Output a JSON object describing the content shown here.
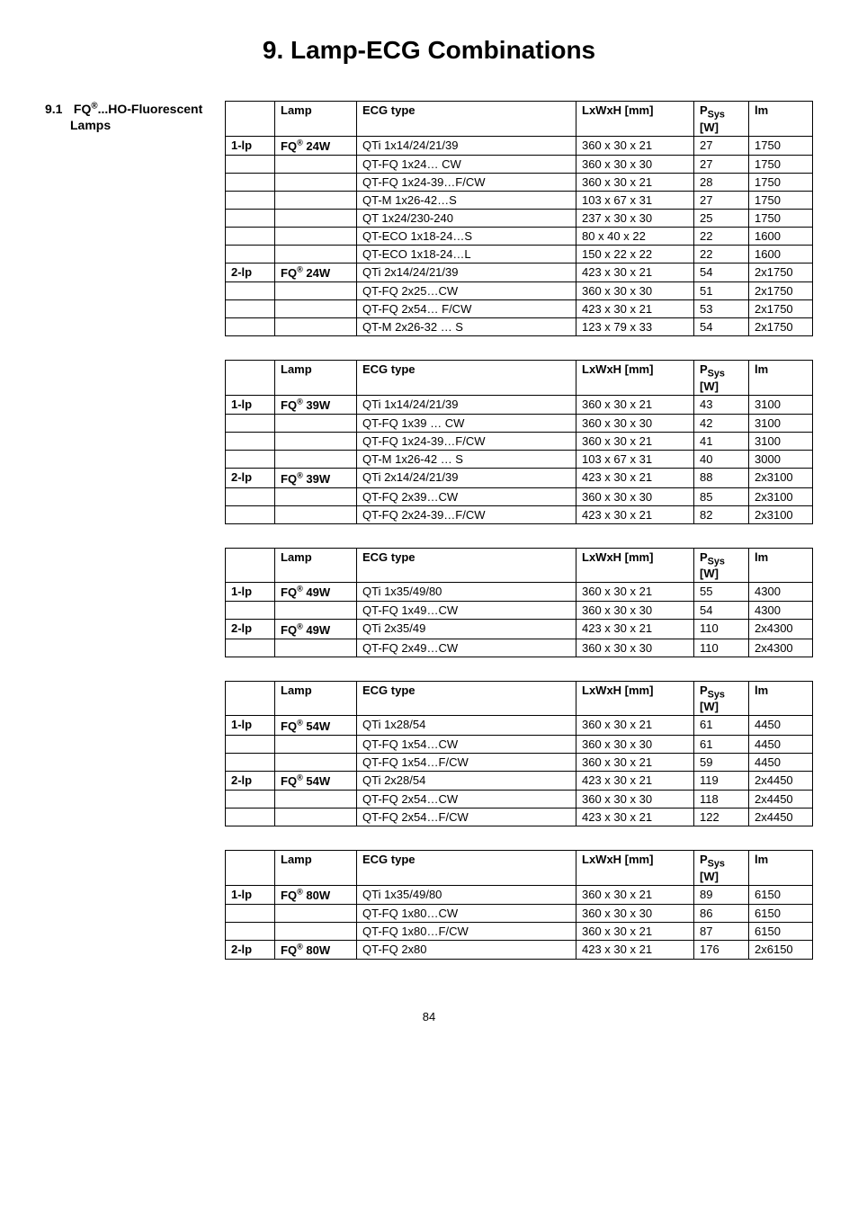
{
  "page_title": "9. Lamp-ECG Combinations",
  "section_number": "9.1",
  "section_title_line1": "FQ®...HO-Fluorescent",
  "section_title_line2": "Lamps",
  "page_number": "84",
  "headers": {
    "n": "",
    "lamp": "Lamp",
    "ecg": "ECG type",
    "dim": "LxWxH [mm]",
    "psys_top": "P",
    "psys_sub": "Sys",
    "psys_unit": "[W]",
    "lm": "lm"
  },
  "tables": [
    {
      "rows": [
        {
          "n": "1-lp",
          "lamp": "FQ® 24W",
          "ecg": "QTi 1x14/24/21/39",
          "dim": "360 x 30 x 21",
          "psys": "27",
          "lm": "1750"
        },
        {
          "n": "",
          "lamp": "",
          "ecg": "QT-FQ 1x24… CW",
          "dim": "360 x 30 x 30",
          "psys": "27",
          "lm": "1750"
        },
        {
          "n": "",
          "lamp": "",
          "ecg": "QT-FQ 1x24-39…F/CW",
          "dim": "360 x 30 x 21",
          "psys": "28",
          "lm": "1750"
        },
        {
          "n": "",
          "lamp": "",
          "ecg": "QT-M 1x26-42…S",
          "dim": "103 x 67 x 31",
          "psys": "27",
          "lm": "1750"
        },
        {
          "n": "",
          "lamp": "",
          "ecg": "QT 1x24/230-240",
          "dim": "237 x 30 x 30",
          "psys": "25",
          "lm": "1750"
        },
        {
          "n": "",
          "lamp": "",
          "ecg": "QT-ECO 1x18-24…S",
          "dim": "80 x 40 x 22",
          "psys": "22",
          "lm": "1600"
        },
        {
          "n": "",
          "lamp": "",
          "ecg": "QT-ECO 1x18-24…L",
          "dim": "150 x 22 x 22",
          "psys": "22",
          "lm": "1600"
        },
        {
          "n": "2-lp",
          "lamp": "FQ® 24W",
          "ecg": "QTi 2x14/24/21/39",
          "dim": "423 x 30 x 21",
          "psys": "54",
          "lm": "2x1750"
        },
        {
          "n": "",
          "lamp": "",
          "ecg": "QT-FQ 2x25…CW",
          "dim": "360 x 30 x 30",
          "psys": "51",
          "lm": "2x1750"
        },
        {
          "n": "",
          "lamp": "",
          "ecg": "QT-FQ 2x54… F/CW",
          "dim": "423 x 30 x 21",
          "psys": "53",
          "lm": "2x1750"
        },
        {
          "n": "",
          "lamp": "",
          "ecg": "QT-M 2x26-32 … S",
          "dim": "123 x 79 x 33",
          "psys": "54",
          "lm": "2x1750"
        }
      ]
    },
    {
      "rows": [
        {
          "n": "1-lp",
          "lamp": "FQ® 39W",
          "ecg": "QTi 1x14/24/21/39",
          "dim": "360 x 30 x 21",
          "psys": "43",
          "lm": "3100"
        },
        {
          "n": "",
          "lamp": "",
          "ecg": "QT-FQ 1x39 … CW",
          "dim": "360 x 30 x 30",
          "psys": "42",
          "lm": "3100"
        },
        {
          "n": "",
          "lamp": "",
          "ecg": "QT-FQ 1x24-39…F/CW",
          "dim": "360 x 30 x 21",
          "psys": "41",
          "lm": "3100"
        },
        {
          "n": "",
          "lamp": "",
          "ecg": "QT-M 1x26-42 … S",
          "dim": "103 x 67 x 31",
          "psys": "40",
          "lm": "3000"
        },
        {
          "n": "2-lp",
          "lamp": "FQ® 39W",
          "ecg": "QTi 2x14/24/21/39",
          "dim": "423 x 30 x 21",
          "psys": "88",
          "lm": "2x3100"
        },
        {
          "n": "",
          "lamp": "",
          "ecg": "QT-FQ 2x39…CW",
          "dim": "360 x 30 x 30",
          "psys": "85",
          "lm": "2x3100"
        },
        {
          "n": "",
          "lamp": "",
          "ecg": "QT-FQ 2x24-39…F/CW",
          "dim": "423 x 30 x 21",
          "psys": "82",
          "lm": "2x3100"
        }
      ]
    },
    {
      "rows": [
        {
          "n": "1-lp",
          "lamp": "FQ® 49W",
          "ecg": "QTi 1x35/49/80",
          "dim": "360 x 30 x 21",
          "psys": "55",
          "lm": "4300"
        },
        {
          "n": "",
          "lamp": "",
          "ecg": "QT-FQ 1x49…CW",
          "dim": "360 x 30 x 30",
          "psys": "54",
          "lm": "4300"
        },
        {
          "n": "2-lp",
          "lamp": "FQ® 49W",
          "ecg": "QTi 2x35/49",
          "dim": "423 x 30 x 21",
          "psys": "110",
          "lm": "2x4300"
        },
        {
          "n": "",
          "lamp": "",
          "ecg": "QT-FQ 2x49…CW",
          "dim": "360 x 30 x 30",
          "psys": "110",
          "lm": "2x4300"
        }
      ]
    },
    {
      "rows": [
        {
          "n": "1-lp",
          "lamp": "FQ® 54W",
          "ecg": "QTi 1x28/54",
          "dim": "360 x 30 x 21",
          "psys": "61",
          "lm": "4450"
        },
        {
          "n": "",
          "lamp": "",
          "ecg": "QT-FQ 1x54…CW",
          "dim": "360 x 30 x 30",
          "psys": "61",
          "lm": "4450"
        },
        {
          "n": "",
          "lamp": "",
          "ecg": "QT-FQ 1x54…F/CW",
          "dim": "360 x 30 x 21",
          "psys": "59",
          "lm": "4450"
        },
        {
          "n": "2-lp",
          "lamp": "FQ® 54W",
          "ecg": "QTi 2x28/54",
          "dim": "423 x 30 x 21",
          "psys": "119",
          "lm": "2x4450"
        },
        {
          "n": "",
          "lamp": "",
          "ecg": "QT-FQ 2x54…CW",
          "dim": "360 x 30 x 30",
          "psys": "118",
          "lm": "2x4450"
        },
        {
          "n": "",
          "lamp": "",
          "ecg": "QT-FQ 2x54…F/CW",
          "dim": "423 x 30 x 21",
          "psys": "122",
          "lm": "2x4450"
        }
      ]
    },
    {
      "rows": [
        {
          "n": "1-lp",
          "lamp": "FQ® 80W",
          "ecg": "QTi 1x35/49/80",
          "dim": "360 x 30 x 21",
          "psys": "89",
          "lm": "6150"
        },
        {
          "n": "",
          "lamp": "",
          "ecg": "QT-FQ 1x80…CW",
          "dim": "360 x 30 x 30",
          "psys": "86",
          "lm": "6150"
        },
        {
          "n": "",
          "lamp": "",
          "ecg": "QT-FQ 1x80…F/CW",
          "dim": "360 x 30 x 21",
          "psys": "87",
          "lm": "6150"
        },
        {
          "n": "2-lp",
          "lamp": "FQ® 80W",
          "ecg": "QT-FQ 2x80",
          "dim": "423 x 30 x 21",
          "psys": "176",
          "lm": "2x6150"
        }
      ]
    }
  ]
}
